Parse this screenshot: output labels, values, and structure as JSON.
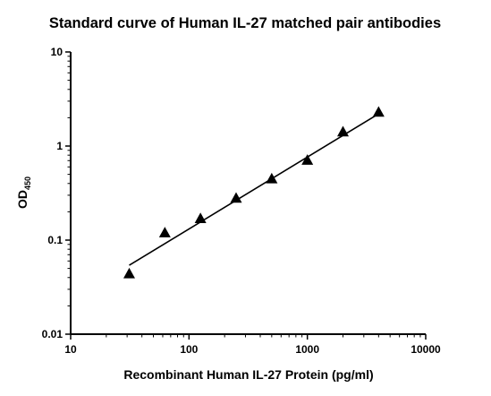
{
  "chart_data": {
    "type": "scatter",
    "title": "Standard curve of Human IL-27 matched pair antibodies",
    "xlabel": "Recombinant Human IL-27 Protein (pg/ml)",
    "ylabel_main": "OD",
    "ylabel_sub": "450",
    "x_scale": "log",
    "y_scale": "log",
    "xlim": [
      10,
      10000
    ],
    "ylim": [
      0.01,
      10
    ],
    "x_ticks": [
      {
        "value": 10,
        "label": "10"
      },
      {
        "value": 100,
        "label": "100"
      },
      {
        "value": 1000,
        "label": "1000"
      },
      {
        "value": 10000,
        "label": "10000"
      }
    ],
    "y_ticks": [
      {
        "value": 0.01,
        "label": "0.01"
      },
      {
        "value": 0.1,
        "label": "0.1"
      },
      {
        "value": 1,
        "label": "1"
      },
      {
        "value": 10,
        "label": "10"
      }
    ],
    "grid": false,
    "marker": "triangle",
    "color": "#000000",
    "points": [
      {
        "x": 31.25,
        "y": 0.044
      },
      {
        "x": 62.5,
        "y": 0.12
      },
      {
        "x": 125,
        "y": 0.17
      },
      {
        "x": 250,
        "y": 0.28
      },
      {
        "x": 500,
        "y": 0.45
      },
      {
        "x": 1000,
        "y": 0.71
      },
      {
        "x": 2000,
        "y": 1.42
      },
      {
        "x": 4000,
        "y": 2.3
      }
    ],
    "fit_line": {
      "x_start": 31.25,
      "y_start": 0.054,
      "x_end": 4000,
      "y_end": 2.2
    }
  }
}
